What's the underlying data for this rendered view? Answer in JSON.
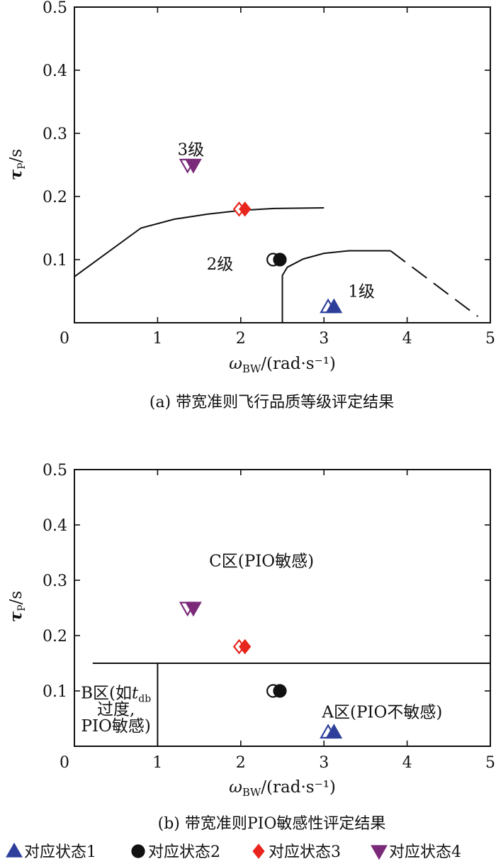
{
  "chart_data": [
    {
      "type": "scatter",
      "caption": "(a) 带宽准则飞行品质等级评定结果",
      "xlabel": "ω_BW/(rad·s⁻¹)",
      "ylabel": "τ_P/s",
      "xlim": [
        0,
        5
      ],
      "ylim": [
        0,
        0.5
      ],
      "xticks": [
        "0",
        "1",
        "2",
        "3",
        "4",
        "5"
      ],
      "yticks": [
        "0.1",
        "0.2",
        "0.3",
        "0.4",
        "0.5"
      ],
      "grid": false,
      "boundaries": [
        {
          "style": "solid",
          "points": [
            [
              0.0,
              0.073
            ],
            [
              0.8,
              0.15
            ],
            [
              1.2,
              0.164
            ],
            [
              1.6,
              0.172
            ],
            [
              2.0,
              0.178
            ],
            [
              2.4,
              0.181
            ],
            [
              3.0,
              0.182
            ]
          ]
        },
        {
          "style": "solid",
          "points": [
            [
              2.5,
              0.0
            ],
            [
              2.5,
              0.075
            ],
            [
              2.56,
              0.088
            ],
            [
              2.75,
              0.101
            ],
            [
              3.0,
              0.11
            ],
            [
              3.3,
              0.114
            ],
            [
              3.8,
              0.114
            ]
          ]
        },
        {
          "style": "dashed",
          "points": [
            [
              3.8,
              0.114
            ],
            [
              4.85,
              0.01
            ]
          ]
        }
      ],
      "region_labels": [
        {
          "text": "3级",
          "x": 1.4,
          "y": 0.275
        },
        {
          "text": "2级",
          "x": 1.75,
          "y": 0.093
        },
        {
          "text": "1级",
          "x": 3.45,
          "y": 0.05
        }
      ],
      "series": [
        {
          "name": "对应状态1",
          "marker": "triangle-up",
          "color": "#2e3f9b",
          "points": [
            [
              3.05,
              0.025
            ],
            [
              3.12,
              0.025
            ]
          ]
        },
        {
          "name": "对应状态2",
          "marker": "circle",
          "color": "#111111",
          "points": [
            [
              2.39,
              0.1
            ],
            [
              2.47,
              0.1
            ]
          ]
        },
        {
          "name": "对应状态3",
          "marker": "diamond",
          "color": "#e8251c",
          "points": [
            [
              1.98,
              0.18
            ],
            [
              2.05,
              0.18
            ]
          ]
        },
        {
          "name": "对应状态4",
          "marker": "triangle-down",
          "color": "#7b2a7a",
          "points": [
            [
              1.36,
              0.25
            ],
            [
              1.43,
              0.25
            ]
          ]
        }
      ]
    },
    {
      "type": "scatter",
      "caption": "(b) 带宽准则PIO敏感性评定结果",
      "xlabel": "ω_BW/(rad·s⁻¹)",
      "ylabel": "τ_P/s",
      "xlim": [
        0,
        5
      ],
      "ylim": [
        0,
        0.5
      ],
      "xticks": [
        "0",
        "1",
        "2",
        "3",
        "4",
        "5"
      ],
      "yticks": [
        "0.1",
        "0.2",
        "0.3",
        "0.4",
        "0.5"
      ],
      "grid": false,
      "boundaries": [
        {
          "style": "solid",
          "points": [
            [
              0.22,
              0.15
            ],
            [
              5.0,
              0.15
            ]
          ]
        },
        {
          "style": "solid",
          "points": [
            [
              1.0,
              0.0
            ],
            [
              1.0,
              0.15
            ]
          ]
        }
      ],
      "region_labels": [
        {
          "text": "C区(PIO敏感)",
          "x": 2.25,
          "y": 0.335
        },
        {
          "text": "B区(如t_db",
          "x": 0.5,
          "y": 0.097
        },
        {
          "text": "过度,",
          "x": 0.5,
          "y": 0.067
        },
        {
          "text": "PIO敏感)",
          "x": 0.5,
          "y": 0.037
        },
        {
          "text": "A区(PIO不敏感)",
          "x": 3.7,
          "y": 0.062
        }
      ],
      "series": [
        {
          "name": "对应状态1",
          "marker": "triangle-up",
          "color": "#2e3f9b",
          "points": [
            [
              3.05,
              0.025
            ],
            [
              3.12,
              0.025
            ]
          ]
        },
        {
          "name": "对应状态2",
          "marker": "circle",
          "color": "#111111",
          "points": [
            [
              2.39,
              0.1
            ],
            [
              2.47,
              0.1
            ]
          ]
        },
        {
          "name": "对应状态3",
          "marker": "diamond",
          "color": "#e8251c",
          "points": [
            [
              1.98,
              0.18
            ],
            [
              2.05,
              0.18
            ]
          ]
        },
        {
          "name": "对应状态4",
          "marker": "triangle-down",
          "color": "#7b2a7a",
          "points": [
            [
              1.36,
              0.25
            ],
            [
              1.43,
              0.25
            ]
          ]
        }
      ]
    }
  ],
  "legend": {
    "placement": "bottom",
    "items": [
      {
        "label": "对应状态1",
        "marker": "triangle-up",
        "color": "#2e3f9b"
      },
      {
        "label": "对应状态2",
        "marker": "circle",
        "color": "#111111"
      },
      {
        "label": "对应状态3",
        "marker": "diamond",
        "color": "#e8251c"
      },
      {
        "label": "对应状态4",
        "marker": "triangle-down",
        "color": "#7b2a7a"
      }
    ]
  }
}
